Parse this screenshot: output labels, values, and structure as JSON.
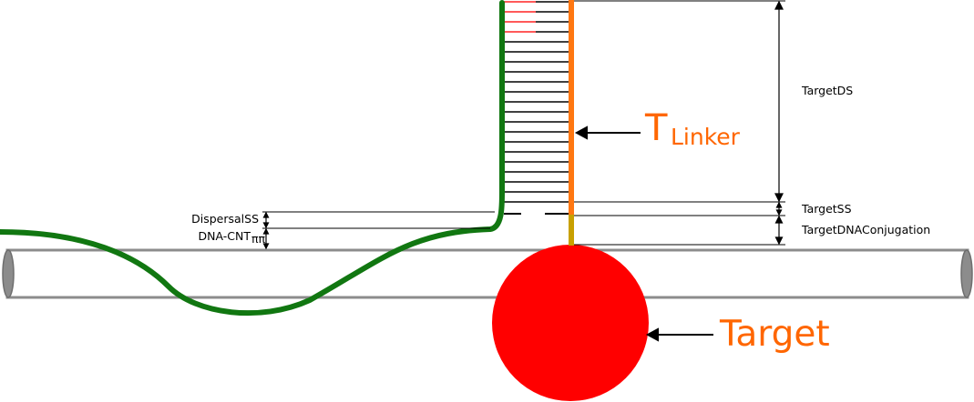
{
  "labels": {
    "target_ds": "TargetDS",
    "target_ss": "TargetSS",
    "target_dna_conjugation": "TargetDNAConjugation",
    "dispersal_ss": "DispersalSS",
    "dna_cnt": "DNA-CNT",
    "dna_cnt_sub": "ππ",
    "t_linker_main": "T",
    "t_linker_sub": "Linker",
    "target": "Target"
  },
  "colors": {
    "nanotube": "#8c8c8c",
    "dispersal_strand": "#117711",
    "linker_strand": "#ff7711",
    "conjugation_segment": "#c8a000",
    "mismatch_rungs": "#ff2222",
    "target_particle": "#ff0000",
    "label_accent": "#ff6600"
  },
  "base_pairs": {
    "paired_count": 21,
    "mismatch_count": 4
  }
}
